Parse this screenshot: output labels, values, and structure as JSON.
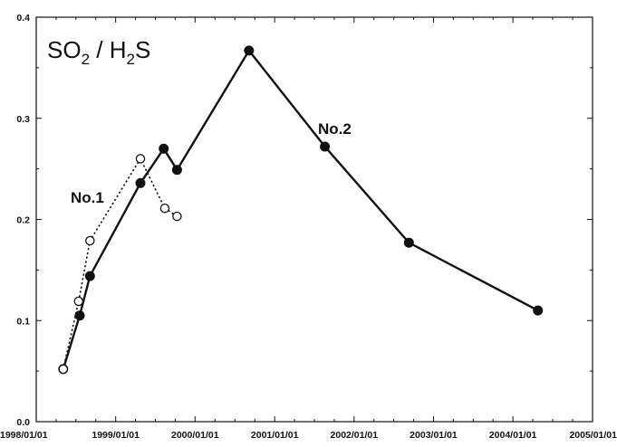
{
  "chart_data": {
    "type": "line",
    "title_main": "SO",
    "title_sub1": "2",
    "title_mid": " / H",
    "title_sub2": "2",
    "title_end": "S",
    "xlabel": "",
    "ylabel": "",
    "xlim": [
      "1998/01/01",
      "2005/01/01"
    ],
    "ylim": [
      0.0,
      0.4
    ],
    "grid": false,
    "x_tick_labels": [
      "1998/01/01",
      "1999/01/01",
      "2000/01/01",
      "2001/01/01",
      "2002/01/01",
      "2003/01/01",
      "2004/01/01",
      "2005/01/01"
    ],
    "y_tick_labels": [
      "0.0",
      "0.1",
      "0.2",
      "0.3",
      "0.4"
    ],
    "annotations": [
      {
        "text": "No.1",
        "series": "No.1"
      },
      {
        "text": "No.2",
        "series": "No.2"
      }
    ],
    "series": [
      {
        "name": "No.2",
        "style": "solid",
        "marker": "filled-circle",
        "points": [
          {
            "x": "1998/05/05",
            "y": 0.052
          },
          {
            "x": "1998/07/20",
            "y": 0.105
          },
          {
            "x": "1998/09/05",
            "y": 0.144
          },
          {
            "x": "1999/04/25",
            "y": 0.236
          },
          {
            "x": "1999/08/10",
            "y": 0.27
          },
          {
            "x": "1999/10/10",
            "y": 0.249
          },
          {
            "x": "2000/09/05",
            "y": 0.367
          },
          {
            "x": "2001/08/20",
            "y": 0.272
          },
          {
            "x": "2002/09/10",
            "y": 0.177
          },
          {
            "x": "2004/04/25",
            "y": 0.11
          }
        ]
      },
      {
        "name": "No.1",
        "style": "dotted",
        "marker": "open-circle",
        "points": [
          {
            "x": "1998/05/05",
            "y": 0.052
          },
          {
            "x": "1998/07/15",
            "y": 0.119
          },
          {
            "x": "1998/09/05",
            "y": 0.179
          },
          {
            "x": "1999/04/25",
            "y": 0.26
          },
          {
            "x": "1999/08/15",
            "y": 0.211
          },
          {
            "x": "1999/10/10",
            "y": 0.203
          }
        ]
      }
    ],
    "colors": {
      "line": "#111111",
      "marker_fill": "#111111",
      "background": "#ffffff"
    }
  }
}
